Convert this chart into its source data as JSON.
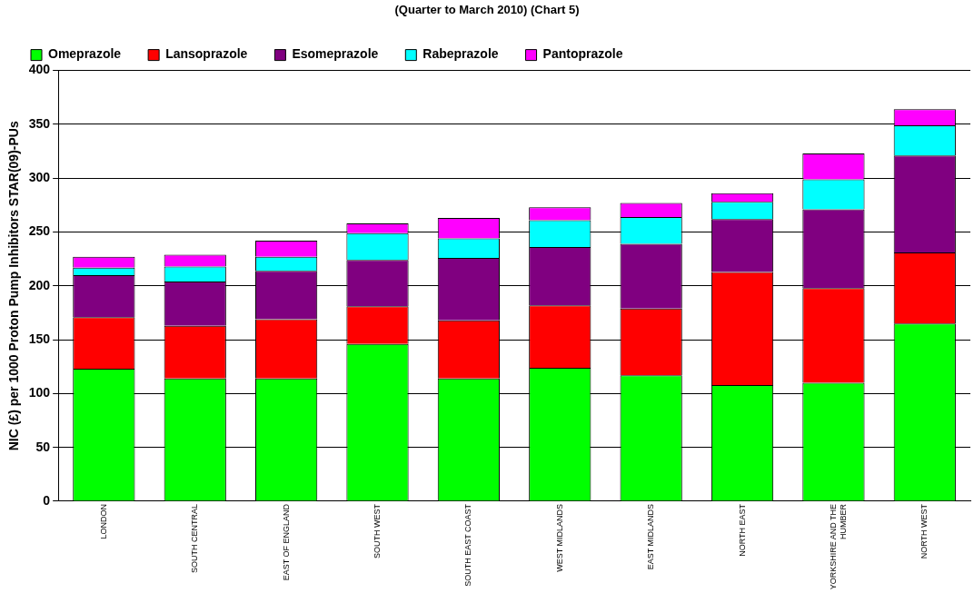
{
  "chart_data": {
    "type": "bar",
    "title": "(Quarter to March 2010) (Chart 5)",
    "ylabel": "NIC (£) per 1000 Proton Pump Inhibitors STAR(09)-PUs",
    "categories": [
      "LONDON",
      "SOUTH CENTRAL",
      "EAST OF ENGLAND",
      "SOUTH WEST",
      "SOUTH EAST COAST",
      "WEST MIDLANDS",
      "EAST MIDLANDS",
      "NORTH EAST",
      "YORKSHIRE AND THE HUMBER",
      "NORTH WEST"
    ],
    "stacked": true,
    "series": [
      {
        "name": "Omeprazole",
        "color": "#00ff00",
        "values": [
          123,
          114,
          114,
          146,
          114,
          124,
          117,
          108,
          110,
          165
        ]
      },
      {
        "name": "Lansoprazole",
        "color": "#ff0000",
        "values": [
          48,
          49,
          55,
          35,
          54,
          58,
          62,
          105,
          88,
          66
        ]
      },
      {
        "name": "Esomeprazole",
        "color": "#800080",
        "values": [
          39,
          41,
          45,
          43,
          58,
          54,
          60,
          49,
          73,
          90
        ]
      },
      {
        "name": "Rabeprazole",
        "color": "#00ffff",
        "values": [
          7,
          14,
          13,
          25,
          18,
          25,
          25,
          16,
          28,
          28
        ]
      },
      {
        "name": "Pantoprazole",
        "color": "#ff00ff",
        "values": [
          10,
          11,
          15,
          9,
          19,
          12,
          13,
          8,
          24,
          15
        ]
      }
    ],
    "ylim": [
      0,
      400
    ],
    "yticks": [
      0,
      50,
      100,
      150,
      200,
      250,
      300,
      350,
      400
    ],
    "grid": "y",
    "legend": "top"
  }
}
